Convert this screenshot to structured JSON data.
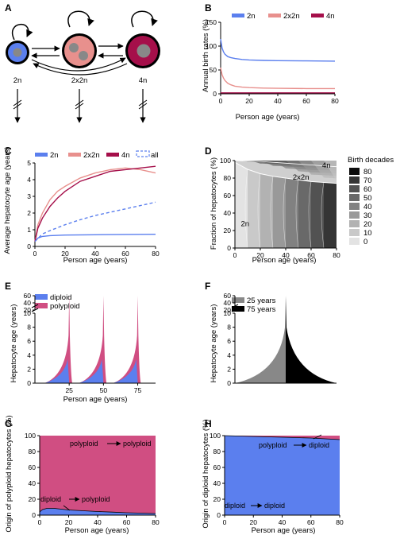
{
  "colors": {
    "blue": "#5b7fee",
    "salmon": "#e8908d",
    "crimson": "#a50f4a",
    "pink": "#d04e82",
    "gray_mid": "#888888",
    "black": "#000000"
  },
  "chart_data": [
    {
      "panel": "A",
      "type": "diagram",
      "nodes": [
        "2n",
        "2x2n",
        "4n"
      ]
    },
    {
      "panel": "B",
      "type": "line",
      "xlabel": "Person age (years)",
      "ylabel": "Annual birth rates (%)",
      "xlim": [
        0,
        80
      ],
      "ylim": [
        0,
        150
      ],
      "xticks": [
        0,
        20,
        40,
        60,
        80
      ],
      "yticks": [
        0,
        50,
        100,
        150
      ],
      "legend": "top",
      "series": [
        {
          "name": "2n",
          "color": "#5b7fee",
          "x": [
            0,
            1,
            2,
            3,
            5,
            7,
            10,
            15,
            20,
            30,
            40,
            60,
            80
          ],
          "y": [
            115,
            96,
            88,
            83,
            78,
            76,
            74,
            72,
            71,
            70,
            69.5,
            69,
            68.5
          ]
        },
        {
          "name": "2x2n",
          "color": "#e8908d",
          "x": [
            0,
            1,
            2,
            3,
            5,
            7,
            10,
            15,
            20,
            30,
            40,
            60,
            80
          ],
          "y": [
            55,
            40,
            33,
            28,
            22,
            19,
            16,
            14,
            13,
            12,
            11.5,
            11,
            11
          ]
        },
        {
          "name": "4n",
          "color": "#a50f4a",
          "x": [
            0,
            2,
            5,
            10,
            20,
            40,
            60,
            80
          ],
          "y": [
            2,
            2,
            2,
            2,
            2,
            2,
            2,
            2
          ]
        }
      ]
    },
    {
      "panel": "C",
      "type": "line",
      "xlabel": "Person age (years)",
      "ylabel": "Average hepatocyte age (years)",
      "xlim": [
        0,
        80
      ],
      "ylim": [
        0,
        5
      ],
      "xticks": [
        0,
        20,
        40,
        60,
        80
      ],
      "yticks": [
        0,
        1,
        2,
        3,
        4,
        5
      ],
      "legend": "top",
      "series": [
        {
          "name": "2n",
          "color": "#5b7fee",
          "x": [
            0,
            2,
            5,
            10,
            20,
            40,
            60,
            80
          ],
          "y": [
            0.3,
            0.5,
            0.6,
            0.65,
            0.68,
            0.7,
            0.72,
            0.73
          ]
        },
        {
          "name": "2x2n",
          "color": "#e8908d",
          "x": [
            0,
            2,
            5,
            10,
            15,
            20,
            30,
            40,
            50,
            60,
            70,
            80
          ],
          "y": [
            0.3,
            1.3,
            2.0,
            2.8,
            3.3,
            3.6,
            4.1,
            4.4,
            4.6,
            4.7,
            4.6,
            4.4
          ]
        },
        {
          "name": "4n",
          "color": "#a50f4a",
          "x": [
            0,
            2,
            5,
            10,
            15,
            20,
            30,
            40,
            50,
            60,
            70,
            80
          ],
          "y": [
            0.3,
            1.1,
            1.7,
            2.4,
            2.9,
            3.3,
            3.9,
            4.2,
            4.5,
            4.6,
            4.7,
            4.8
          ]
        },
        {
          "name": "all",
          "color": "#5b7fee",
          "dashed": true,
          "x": [
            0,
            5,
            10,
            20,
            30,
            40,
            50,
            60,
            70,
            80
          ],
          "y": [
            0.3,
            0.75,
            0.95,
            1.3,
            1.6,
            1.85,
            2.05,
            2.25,
            2.45,
            2.65
          ]
        }
      ]
    },
    {
      "panel": "D",
      "type": "area",
      "xlabel": "Person age (years)",
      "ylabel": "Fraction of hepatocytes (%)",
      "xlim": [
        0,
        80
      ],
      "ylim": [
        0,
        100
      ],
      "xticks": [
        0,
        20,
        40,
        60,
        80
      ],
      "yticks": [
        0,
        20,
        40,
        60,
        80,
        100
      ],
      "region_labels": [
        {
          "text": "2n",
          "x": 8,
          "y": 25
        },
        {
          "text": "2x2n",
          "x": 52,
          "y": 78
        },
        {
          "text": "4n",
          "x": 72,
          "y": 92
        }
      ],
      "boundary_2n_top": {
        "x": [
          0,
          5,
          10,
          20,
          30,
          40,
          50,
          60,
          70,
          80
        ],
        "y": [
          98,
          94,
          90,
          85,
          82,
          80,
          78,
          76,
          75,
          74
        ]
      },
      "boundary_2x2n_top": {
        "x": [
          0,
          10,
          20,
          30,
          40,
          50,
          60,
          70,
          80
        ],
        "y": [
          100,
          99.5,
          99,
          98,
          97,
          96,
          95,
          94,
          93
        ]
      },
      "legend_title": "Birth decades",
      "legend_entries": [
        "80",
        "70",
        "60",
        "50",
        "40",
        "30",
        "20",
        "10",
        "0"
      ],
      "decade_colors": [
        "#e3e3e3",
        "#c9c9c9",
        "#b2b2b2",
        "#999999",
        "#818181",
        "#696969",
        "#525252",
        "#353535",
        "#0c0c0c"
      ]
    },
    {
      "panel": "E",
      "type": "area",
      "xlabel": "Person age (years)",
      "ylabel": "Hepatocyte age (years)",
      "xticks": [
        25,
        50,
        75
      ],
      "yticks_lower": [
        0,
        2,
        4,
        6,
        8,
        10
      ],
      "yticks_upper": [
        20,
        40,
        60
      ],
      "legend": "top-left",
      "series": [
        {
          "name": "diploid",
          "color": "#5b7fee"
        },
        {
          "name": "polyploid",
          "color": "#d04e82"
        }
      ],
      "peaks_at": [
        25,
        50,
        75
      ]
    },
    {
      "panel": "F",
      "type": "area",
      "xlabel": "",
      "ylabel": "Hepatocyte age (years)",
      "yticks_lower": [
        0,
        2,
        4,
        6,
        8,
        10
      ],
      "yticks_upper": [
        20,
        40,
        60
      ],
      "legend": "top-left",
      "series": [
        {
          "name": "25 years",
          "color": "#888888"
        },
        {
          "name": "75 years",
          "color": "#000000"
        }
      ]
    },
    {
      "panel": "G",
      "type": "area",
      "xlabel": "Person age (years)",
      "ylabel": "Origin of polyploid hepatocytes (%)",
      "xlim": [
        0,
        80
      ],
      "ylim": [
        0,
        100
      ],
      "xticks": [
        0,
        20,
        40,
        60,
        80
      ],
      "yticks": [
        0,
        20,
        40,
        60,
        80,
        100
      ],
      "annotations": [
        "polyploid",
        "polyploid",
        "diploid",
        "polyploid"
      ],
      "diploid_to_polyploid": {
        "x": [
          0,
          2,
          5,
          10,
          15,
          20,
          30,
          40,
          50,
          60,
          70,
          80
        ],
        "y": [
          4,
          7,
          8.5,
          8.5,
          7.5,
          6.5,
          5.5,
          4.5,
          3.8,
          3,
          2.5,
          2
        ]
      }
    },
    {
      "panel": "H",
      "type": "area",
      "xlabel": "Person age (years)",
      "ylabel": "Origin of diploid hepatocytes (%)",
      "xlim": [
        0,
        80
      ],
      "ylim": [
        0,
        100
      ],
      "xticks": [
        0,
        20,
        40,
        60,
        80
      ],
      "yticks": [
        0,
        20,
        40,
        60,
        80,
        100
      ],
      "annotations": [
        "polyploid",
        "diploid",
        "diploid",
        "diploid"
      ],
      "diploid_to_diploid": {
        "x": [
          0,
          10,
          20,
          30,
          40,
          50,
          60,
          70,
          80
        ],
        "y": [
          100,
          99.5,
          99,
          98.5,
          98,
          97.5,
          97,
          96,
          95
        ]
      }
    }
  ]
}
